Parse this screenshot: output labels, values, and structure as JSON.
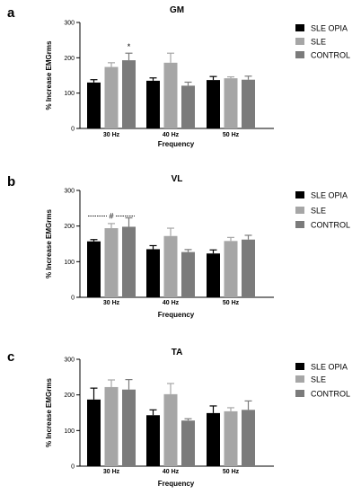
{
  "colors": {
    "SLE OPIA": "#000000",
    "SLE": "#a6a6a6",
    "CONTROL": "#7b7b7b"
  },
  "chart_data": [
    {
      "type": "bar",
      "panel": "a",
      "title": "GM",
      "xlabel": "Frequency",
      "ylabel": "% Increase EMGrms",
      "ylim": [
        0,
        300
      ],
      "yticks": [
        0,
        100,
        200,
        300
      ],
      "categories": [
        "30 Hz",
        "40 Hz",
        "50 Hz"
      ],
      "legend_position": "right",
      "series": [
        {
          "name": "SLE OPIA",
          "values": [
            130,
            135,
            137
          ],
          "errors": [
            8,
            8,
            10
          ]
        },
        {
          "name": "SLE",
          "values": [
            174,
            186,
            142
          ],
          "errors": [
            12,
            27,
            4
          ]
        },
        {
          "name": "CONTROL",
          "values": [
            193,
            121,
            138
          ],
          "errors": [
            20,
            10,
            10
          ]
        }
      ],
      "annotations": [
        {
          "text": "*",
          "category": "30 Hz",
          "series": "CONTROL"
        }
      ]
    },
    {
      "type": "bar",
      "panel": "b",
      "title": "VL",
      "xlabel": "Frequency",
      "ylabel": "% Increase EMGrms",
      "ylim": [
        0,
        300
      ],
      "yticks": [
        0,
        100,
        200,
        300
      ],
      "categories": [
        "30 Hz",
        "40 Hz",
        "50 Hz"
      ],
      "legend_position": "right",
      "series": [
        {
          "name": "SLE OPIA",
          "values": [
            157,
            135,
            123
          ],
          "errors": [
            5,
            10,
            10
          ]
        },
        {
          "name": "SLE",
          "values": [
            194,
            172,
            158
          ],
          "errors": [
            13,
            22,
            10
          ]
        },
        {
          "name": "CONTROL",
          "values": [
            198,
            127,
            162
          ],
          "errors": [
            25,
            7,
            12
          ]
        }
      ],
      "annotations": [
        {
          "text": "#",
          "category": "30 Hz",
          "bracket": true,
          "value": 228
        }
      ]
    },
    {
      "type": "bar",
      "panel": "c",
      "title": "TA",
      "xlabel": "Frequency",
      "ylabel": "% Increase EMGrms",
      "ylim": [
        0,
        300
      ],
      "yticks": [
        0,
        100,
        200,
        300
      ],
      "categories": [
        "30 Hz",
        "40 Hz",
        "50 Hz"
      ],
      "legend_position": "right",
      "series": [
        {
          "name": "SLE OPIA",
          "values": [
            187,
            143,
            149
          ],
          "errors": [
            32,
            15,
            20
          ]
        },
        {
          "name": "SLE",
          "values": [
            222,
            202,
            154
          ],
          "errors": [
            20,
            30,
            10
          ]
        },
        {
          "name": "CONTROL",
          "values": [
            215,
            128,
            158
          ],
          "errors": [
            28,
            5,
            25
          ]
        }
      ],
      "annotations": []
    }
  ]
}
